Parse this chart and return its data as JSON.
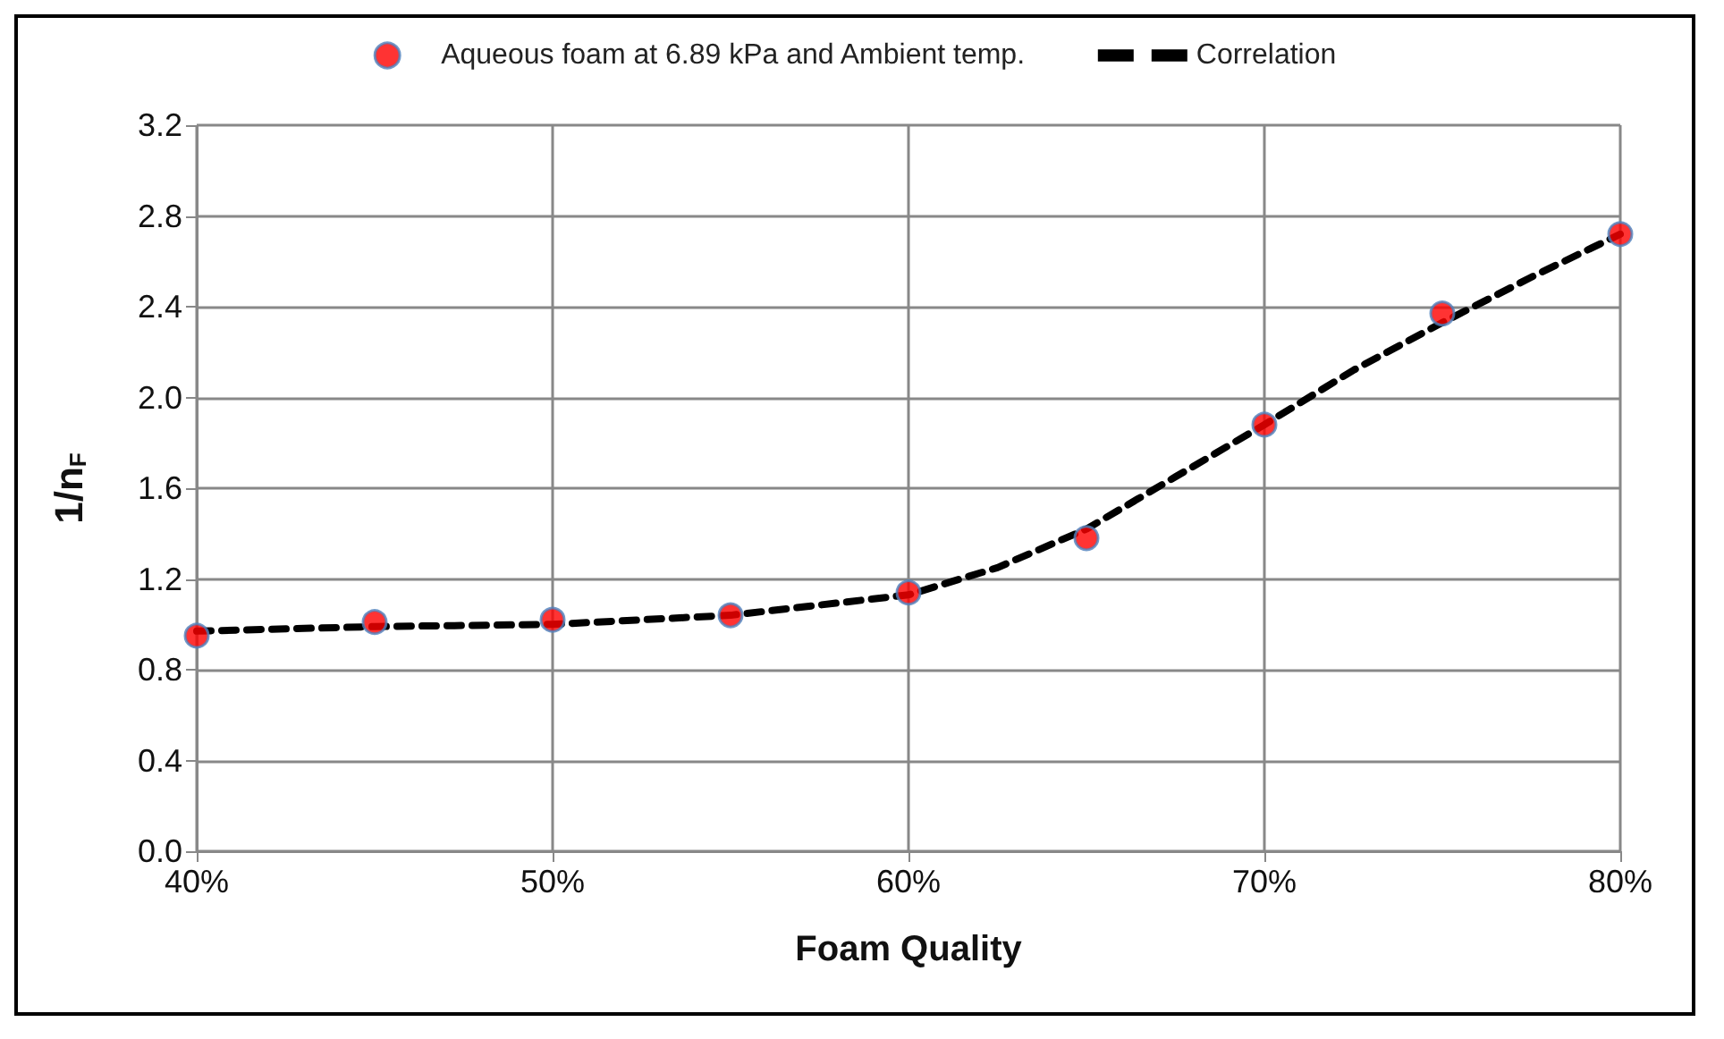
{
  "chart_data": {
    "type": "scatter",
    "xlabel": "Foam Quality",
    "ylabel": "1/n$_{F}$",
    "xlim": [
      40,
      80
    ],
    "xticks": [
      {
        "value": 40,
        "label": "40%"
      },
      {
        "value": 50,
        "label": "50%"
      },
      {
        "value": 60,
        "label": "60%"
      },
      {
        "value": 70,
        "label": "70%"
      },
      {
        "value": 80,
        "label": "80%"
      }
    ],
    "ylim": [
      0,
      3.2
    ],
    "yticks": [
      {
        "value": 0,
        "label": "0.0"
      },
      {
        "value": 0.4,
        "label": "0.4"
      },
      {
        "value": 0.8,
        "label": "0.8"
      },
      {
        "value": 1.2,
        "label": "1.2"
      },
      {
        "value": 1.6,
        "label": "1.6"
      },
      {
        "value": 2,
        "label": "2.0"
      },
      {
        "value": 2.4,
        "label": "2.4"
      },
      {
        "value": 2.8,
        "label": "2.8"
      },
      {
        "value": 3.2,
        "label": "3.2"
      }
    ],
    "grid": true,
    "legend": "top",
    "series": [
      {
        "name": "Aqueous foam at 6.89 kPa and Ambient temp.",
        "marker": "circle",
        "color": "#ff0000",
        "x": [
          40,
          45,
          50,
          55,
          60,
          65,
          70,
          75,
          80
        ],
        "values": [
          0.95,
          1.01,
          1.02,
          1.04,
          1.14,
          1.38,
          1.88,
          2.37,
          2.72
        ]
      },
      {
        "name": "Correlation",
        "type": "line",
        "line_style": "dashed",
        "color": "#000000",
        "x": [
          40,
          45,
          50,
          55,
          60,
          62.5,
          65,
          67.5,
          70,
          72.5,
          75,
          77.5,
          80
        ],
        "values": [
          0.97,
          0.99,
          1.0,
          1.04,
          1.13,
          1.25,
          1.42,
          1.65,
          1.88,
          2.12,
          2.33,
          2.53,
          2.72
        ]
      }
    ]
  }
}
